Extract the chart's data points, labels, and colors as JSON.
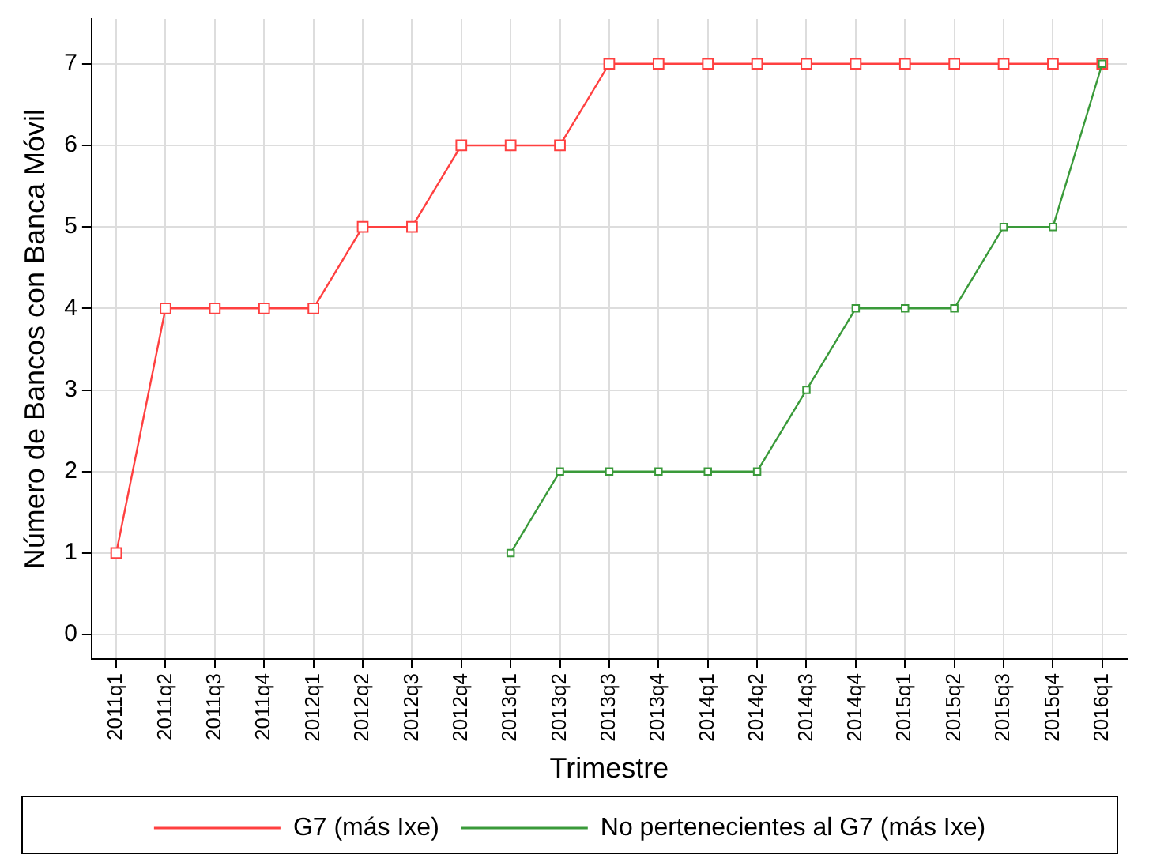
{
  "chart_data": {
    "type": "line",
    "xlabel": "Trimestre",
    "ylabel": "Número de Bancos con Banca Móvil",
    "categories": [
      "2011q1",
      "2011q2",
      "2011q3",
      "2011q4",
      "2012q1",
      "2012q2",
      "2012q3",
      "2012q4",
      "2013q1",
      "2013q2",
      "2013q3",
      "2013q4",
      "2014q1",
      "2014q2",
      "2014q3",
      "2014q4",
      "2015q1",
      "2015q2",
      "2015q3",
      "2015q4",
      "2016q1"
    ],
    "series": [
      {
        "name": "G7 (más Ixe)",
        "color": "#ff4040",
        "values": [
          1,
          4,
          4,
          4,
          4,
          5,
          5,
          6,
          6,
          6,
          7,
          7,
          7,
          7,
          7,
          7,
          7,
          7,
          7,
          7,
          7
        ]
      },
      {
        "name": "No pertenecientes al G7 (más Ixe)",
        "color": "#3a9a3a",
        "values": [
          null,
          null,
          null,
          null,
          null,
          null,
          null,
          null,
          1,
          2,
          2,
          2,
          2,
          2,
          3,
          4,
          4,
          4,
          5,
          5,
          7
        ]
      }
    ],
    "ylim": [
      -0.3,
      7.55
    ],
    "yticks": [
      0,
      1,
      2,
      3,
      4,
      5,
      6,
      7
    ],
    "grid": true,
    "legend": "bottom",
    "marker": "square",
    "line_style": "solid"
  }
}
